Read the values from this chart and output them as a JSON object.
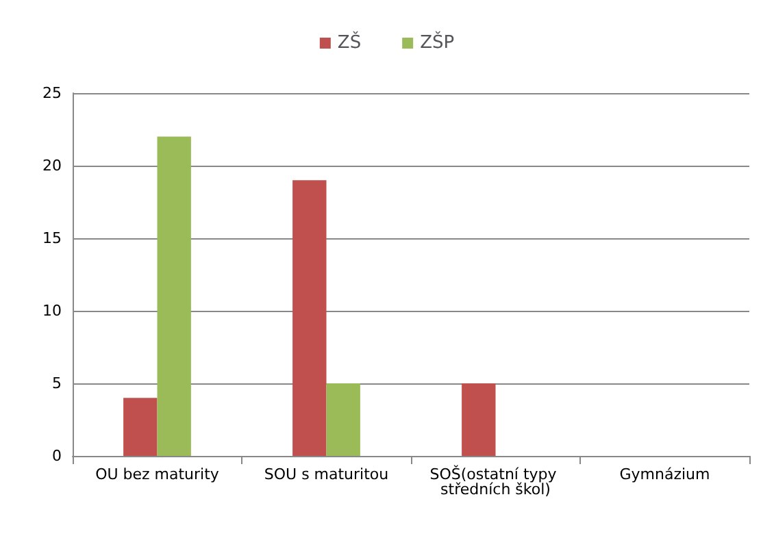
{
  "chart_data": {
    "type": "bar",
    "categories": [
      "OU bez maturity",
      "SOU s maturitou",
      "SOŠ(ostatní typy středních škol)",
      "Gymnázium"
    ],
    "series": [
      {
        "name": "ZŠ",
        "color": "#c0504d",
        "values": [
          4,
          19,
          5,
          0
        ]
      },
      {
        "name": "ZŠP",
        "color": "#9bbb59",
        "values": [
          22,
          5,
          0,
          0
        ]
      }
    ],
    "ylim": [
      0,
      25
    ],
    "yticks": [
      0,
      5,
      10,
      15,
      20,
      25
    ],
    "grid": "y",
    "legend": "top"
  }
}
